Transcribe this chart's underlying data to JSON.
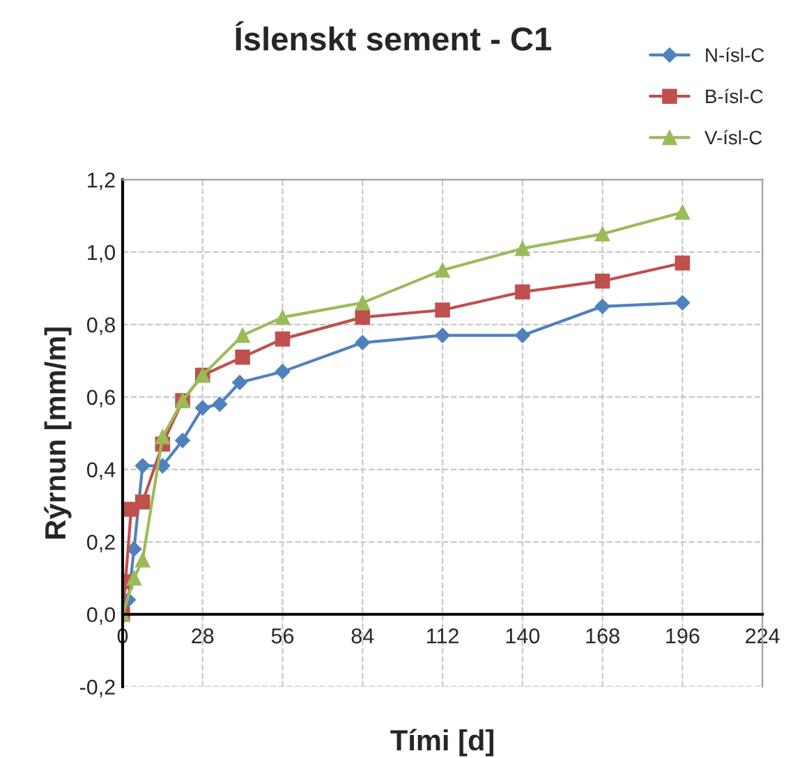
{
  "chart_data": {
    "type": "line",
    "title": "Íslenskt sement - C1",
    "xlabel": "Tími [d]",
    "ylabel": "Rýrnun [mm/m]",
    "xlim": [
      0,
      224
    ],
    "xticks": [
      0,
      28,
      56,
      84,
      112,
      140,
      168,
      196,
      224
    ],
    "ylim": [
      -0.2,
      1.2
    ],
    "yticks": [
      {
        "value": -0.2,
        "label": "-0,2"
      },
      {
        "value": 0,
        "label": "0,0"
      },
      {
        "value": 0.2,
        "label": "0,2"
      },
      {
        "value": 0.4,
        "label": "0,4"
      },
      {
        "value": 0.6,
        "label": "0,6"
      },
      {
        "value": 0.8,
        "label": "0,8"
      },
      {
        "value": 1.0,
        "label": "1,0"
      },
      {
        "value": 1.2,
        "label": "1,2"
      }
    ],
    "grid": true,
    "legend": "top right",
    "series": [
      {
        "name": "N-ísl-C",
        "color": "#4f81bd",
        "marker": "diamond",
        "x": [
          0,
          2,
          4,
          7,
          14,
          21,
          28,
          34,
          41,
          56,
          84,
          112,
          140,
          168,
          196
        ],
        "values": [
          0,
          0.04,
          0.18,
          0.41,
          0.41,
          0.48,
          0.57,
          0.58,
          0.64,
          0.67,
          0.75,
          0.77,
          0.77,
          0.85,
          0.86
        ]
      },
      {
        "name": "B-ísl-C",
        "color": "#c0504d",
        "marker": "square",
        "x": [
          0,
          1,
          3,
          7,
          14,
          21,
          28,
          42,
          56,
          84,
          112,
          140,
          168,
          196
        ],
        "values": [
          0,
          0.09,
          0.29,
          0.31,
          0.47,
          0.59,
          0.66,
          0.71,
          0.76,
          0.82,
          0.84,
          0.89,
          0.92,
          0.97
        ]
      },
      {
        "name": "V-ísl-C",
        "color": "#9bbb59",
        "marker": "triangle",
        "x": [
          0,
          4,
          7,
          14,
          21,
          28,
          42,
          56,
          84,
          112,
          140,
          168,
          196
        ],
        "values": [
          0,
          0.1,
          0.15,
          0.49,
          0.59,
          0.66,
          0.77,
          0.82,
          0.86,
          0.95,
          1.01,
          1.05,
          1.11
        ]
      }
    ]
  }
}
